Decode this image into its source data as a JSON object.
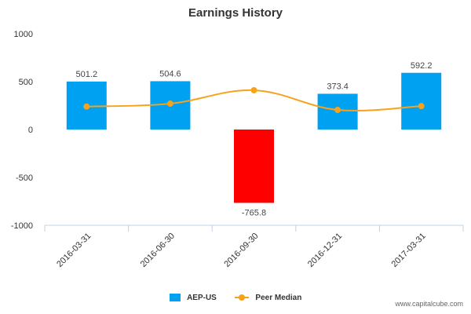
{
  "chart_data": {
    "type": "bar",
    "title": "Earnings History",
    "categories": [
      "2016-03-31",
      "2016-06-30",
      "2016-09-30",
      "2016-12-31",
      "2017-03-31"
    ],
    "series": [
      {
        "name": "AEP-US",
        "values": [
          501.2,
          504.6,
          -765.8,
          373.4,
          592.2
        ],
        "data_labels": [
          "501.2",
          "504.6",
          "-765.8",
          "373.4",
          "592.2"
        ],
        "color": "#00a1f1",
        "negative_color": "#ff0000"
      },
      {
        "name": "Peer Median",
        "type": "line",
        "values": [
          240,
          270,
          410,
          205,
          245
        ],
        "color": "#f7a21b"
      }
    ],
    "ylim": [
      -1000,
      1000
    ],
    "yticks": [
      "1000",
      "500",
      "0",
      "-500",
      "-1000"
    ],
    "grid": false,
    "legend_placement": "bottom"
  },
  "legend": {
    "items": [
      {
        "label": "AEP-US",
        "color": "#00a1f1"
      },
      {
        "label": "Peer Median",
        "color": "#f7a21b"
      }
    ]
  },
  "watermark": "www.capitalcube.com"
}
